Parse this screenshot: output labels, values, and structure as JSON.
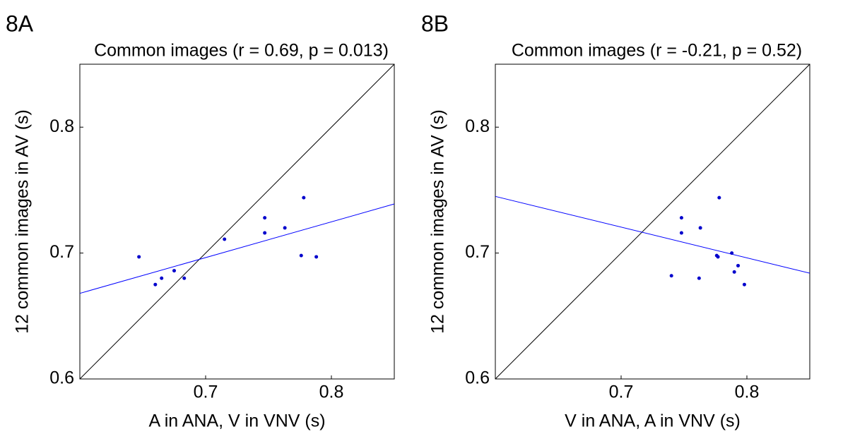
{
  "chart_data": [
    {
      "type": "scatter",
      "panel": "8A",
      "title": "Common images (r = 0.69, p = 0.013)",
      "x_label": "A in ANA, V in VNV (s)",
      "y_label": "12 common images in AV (s)",
      "xlim": [
        0.6,
        0.85
      ],
      "ylim": [
        0.6,
        0.85
      ],
      "xticks": [
        0.7,
        0.8
      ],
      "yticks": [
        0.6,
        0.7,
        0.8
      ],
      "series": [
        {
          "color": "#0000cc",
          "x": [
            0.647,
            0.66,
            0.665,
            0.675,
            0.683,
            0.715,
            0.747,
            0.747,
            0.763,
            0.778,
            0.776,
            0.788
          ],
          "values": [
            0.697,
            0.675,
            0.68,
            0.686,
            0.68,
            0.711,
            0.728,
            0.716,
            0.72,
            0.744,
            0.698,
            0.697
          ]
        }
      ],
      "fit_line": {
        "color": "#0000ff",
        "x": [
          0.6,
          0.85
        ],
        "values": [
          0.668,
          0.739
        ]
      },
      "reference_line": {
        "color": "#000000",
        "x": [
          0.6,
          0.85
        ],
        "values": [
          0.6,
          0.85
        ]
      }
    },
    {
      "type": "scatter",
      "panel": "8B",
      "title": "Common images (r = -0.21, p = 0.52)",
      "x_label": "V in ANA, A in VNV (s)",
      "y_label": "12 common images in AV (s)",
      "xlim": [
        0.6,
        0.85
      ],
      "ylim": [
        0.6,
        0.85
      ],
      "xticks": [
        0.7,
        0.8
      ],
      "yticks": [
        0.6,
        0.7,
        0.8
      ],
      "series": [
        {
          "color": "#0000cc",
          "x": [
            0.748,
            0.748,
            0.763,
            0.778,
            0.776,
            0.777,
            0.793,
            0.788,
            0.79,
            0.798,
            0.74,
            0.762
          ],
          "values": [
            0.728,
            0.716,
            0.72,
            0.744,
            0.698,
            0.697,
            0.69,
            0.7,
            0.685,
            0.675,
            0.682,
            0.68
          ]
        }
      ],
      "fit_line": {
        "color": "#0000ff",
        "x": [
          0.6,
          0.85
        ],
        "values": [
          0.745,
          0.684
        ]
      },
      "reference_line": {
        "color": "#000000",
        "x": [
          0.6,
          0.85
        ],
        "values": [
          0.6,
          0.85
        ]
      }
    }
  ]
}
